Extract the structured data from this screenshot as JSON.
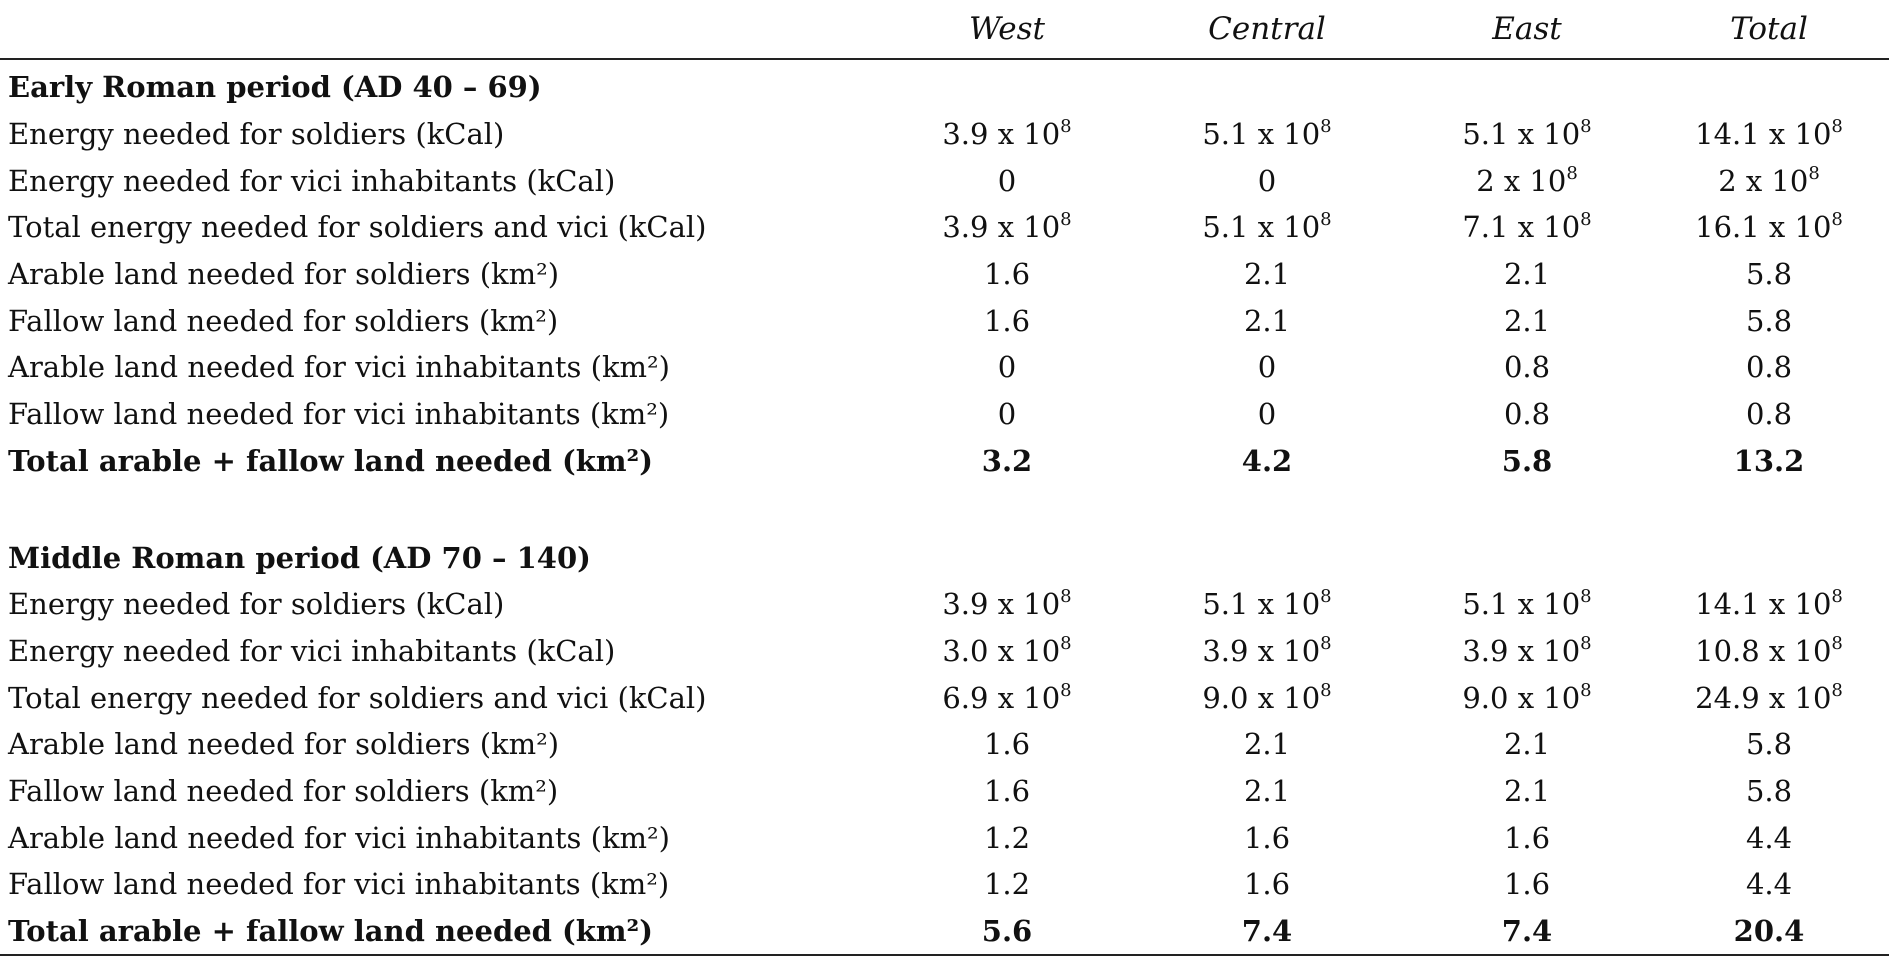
{
  "columns": [
    "West",
    "Central",
    "East",
    "Total"
  ],
  "sections": [
    {
      "title": "Early Roman period (AD 40 – 69)",
      "rows": [
        {
          "label": "Energy needed for soldiers (kCal)",
          "values": [
            {
              "m": "3.9 x 10",
              "e": "8"
            },
            {
              "m": "5.1 x 10",
              "e": "8"
            },
            {
              "m": "5.1 x 10",
              "e": "8"
            },
            {
              "m": "14.1 x 10",
              "e": "8"
            }
          ]
        },
        {
          "label": "Energy needed for vici inhabitants (kCal)",
          "values": [
            {
              "m": "0"
            },
            {
              "m": "0"
            },
            {
              "m": "2 x 10",
              "e": "8"
            },
            {
              "m": "2 x 10",
              "e": "8"
            }
          ]
        },
        {
          "label": "Total energy needed for soldiers and vici (kCal)",
          "values": [
            {
              "m": "3.9 x 10",
              "e": "8"
            },
            {
              "m": "5.1 x 10",
              "e": "8"
            },
            {
              "m": "7.1 x 10",
              "e": "8"
            },
            {
              "m": "16.1 x 10",
              "e": "8"
            }
          ]
        },
        {
          "label": "Arable land needed for soldiers (km²)",
          "values": [
            {
              "m": "1.6"
            },
            {
              "m": "2.1"
            },
            {
              "m": "2.1"
            },
            {
              "m": "5.8"
            }
          ]
        },
        {
          "label": "Fallow land needed for soldiers (km²)",
          "values": [
            {
              "m": "1.6"
            },
            {
              "m": "2.1"
            },
            {
              "m": "2.1"
            },
            {
              "m": "5.8"
            }
          ]
        },
        {
          "label": "Arable land needed for vici inhabitants (km²)",
          "values": [
            {
              "m": "0"
            },
            {
              "m": "0"
            },
            {
              "m": "0.8"
            },
            {
              "m": "0.8"
            }
          ]
        },
        {
          "label": "Fallow land needed for vici inhabitants (km²)",
          "values": [
            {
              "m": "0"
            },
            {
              "m": "0"
            },
            {
              "m": "0.8"
            },
            {
              "m": "0.8"
            }
          ]
        },
        {
          "label": "Total arable + fallow land needed (km²)",
          "total": true,
          "values": [
            {
              "m": "3.2"
            },
            {
              "m": "4.2"
            },
            {
              "m": "5.8"
            },
            {
              "m": "13.2"
            }
          ]
        }
      ]
    },
    {
      "title": "Middle Roman period (AD 70 – 140)",
      "rows": [
        {
          "label": "Energy needed for soldiers (kCal)",
          "values": [
            {
              "m": "3.9 x 10",
              "e": "8"
            },
            {
              "m": "5.1 x 10",
              "e": "8"
            },
            {
              "m": "5.1 x 10",
              "e": "8"
            },
            {
              "m": "14.1 x 10",
              "e": "8"
            }
          ]
        },
        {
          "label": "Energy needed for vici inhabitants (kCal)",
          "values": [
            {
              "m": "3.0 x 10",
              "e": "8"
            },
            {
              "m": "3.9 x 10",
              "e": "8"
            },
            {
              "m": "3.9 x 10",
              "e": "8"
            },
            {
              "m": "10.8 x 10",
              "e": "8"
            }
          ]
        },
        {
          "label": "Total energy needed for soldiers and vici (kCal)",
          "values": [
            {
              "m": "6.9 x 10",
              "e": "8"
            },
            {
              "m": "9.0 x 10",
              "e": "8"
            },
            {
              "m": "9.0 x 10",
              "e": "8"
            },
            {
              "m": "24.9 x 10",
              "e": "8"
            }
          ]
        },
        {
          "label": "Arable land needed for soldiers (km²)",
          "values": [
            {
              "m": "1.6"
            },
            {
              "m": "2.1"
            },
            {
              "m": "2.1"
            },
            {
              "m": "5.8"
            }
          ]
        },
        {
          "label": "Fallow land needed for soldiers (km²)",
          "values": [
            {
              "m": "1.6"
            },
            {
              "m": "2.1"
            },
            {
              "m": "2.1"
            },
            {
              "m": "5.8"
            }
          ]
        },
        {
          "label": "Arable land needed for vici inhabitants (km²)",
          "values": [
            {
              "m": "1.2"
            },
            {
              "m": "1.6"
            },
            {
              "m": "1.6"
            },
            {
              "m": "4.4"
            }
          ]
        },
        {
          "label": "Fallow land needed for vici inhabitants (km²)",
          "values": [
            {
              "m": "1.2"
            },
            {
              "m": "1.6"
            },
            {
              "m": "1.6"
            },
            {
              "m": "4.4"
            }
          ]
        },
        {
          "label": "Total arable + fallow land needed (km²)",
          "total": true,
          "values": [
            {
              "m": "5.6"
            },
            {
              "m": "7.4"
            },
            {
              "m": "7.4"
            },
            {
              "m": "20.4"
            }
          ]
        }
      ]
    }
  ]
}
